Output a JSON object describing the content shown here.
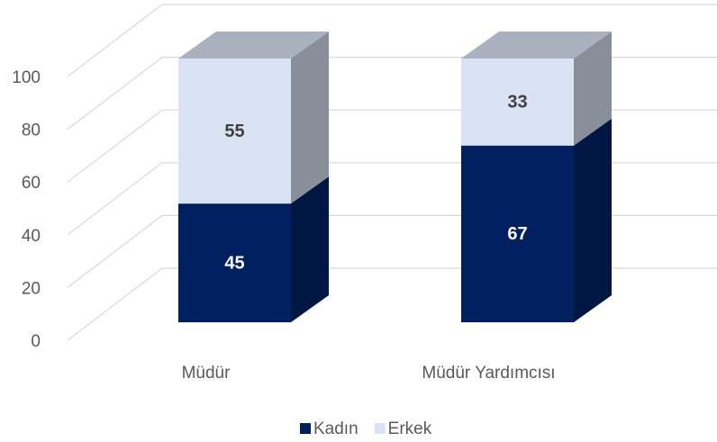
{
  "chart_data": {
    "type": "bar3d_stacked",
    "categories": [
      "Müdür",
      "Müdür Yardımcısı"
    ],
    "series": [
      {
        "name": "Kadın",
        "color": "#002060",
        "values": [
          45,
          67
        ]
      },
      {
        "name": "Erkek",
        "color": "#dae3f3",
        "values": [
          55,
          33
        ]
      }
    ],
    "ylim": [
      0,
      100
    ],
    "yticks": [
      0,
      20,
      40,
      60,
      80,
      100
    ],
    "grid": true,
    "legend": "bottom"
  }
}
